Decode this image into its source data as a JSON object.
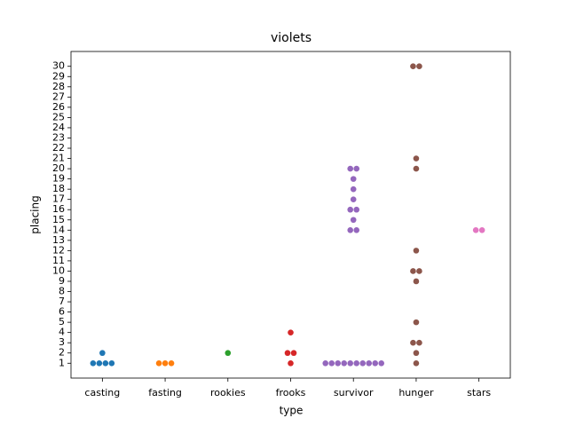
{
  "chart_data": {
    "type": "swarm",
    "title": "violets",
    "x_label": "type",
    "y_label": "placing",
    "groups": [
      {
        "name": "casting",
        "color": "#1f77b4",
        "values": [
          1,
          1,
          1,
          1,
          2
        ]
      },
      {
        "name": "fasting",
        "color": "#ff7f0e",
        "values": [
          1,
          1,
          1
        ]
      },
      {
        "name": "rookies",
        "color": "#2ca02c",
        "values": [
          2
        ]
      },
      {
        "name": "frooks",
        "color": "#d62728",
        "values": [
          1,
          2,
          2,
          4
        ]
      },
      {
        "name": "survivor",
        "color": "#9467bd",
        "values": [
          1,
          1,
          1,
          1,
          1,
          1,
          1,
          1,
          1,
          1,
          14,
          14,
          15,
          16,
          16,
          17,
          18,
          19,
          20,
          20
        ]
      },
      {
        "name": "hunger",
        "color": "#8c564b",
        "values": [
          1,
          2,
          3,
          3,
          5,
          9,
          10,
          10,
          12,
          20,
          21,
          30,
          30
        ]
      },
      {
        "name": "stars",
        "color": "#e377c2",
        "values": [
          14,
          14
        ]
      }
    ],
    "ylim": [
      -0.45,
      31.45
    ],
    "yticks": [
      1,
      2,
      3,
      4,
      5,
      6,
      7,
      8,
      9,
      10,
      11,
      12,
      13,
      14,
      15,
      16,
      17,
      18,
      19,
      20,
      21,
      22,
      23,
      24,
      25,
      26,
      27,
      28,
      29,
      30
    ]
  }
}
